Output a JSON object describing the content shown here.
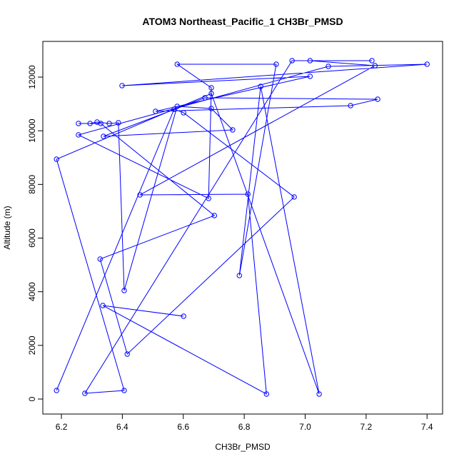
{
  "chart_data": {
    "type": "line",
    "title": "ATOM3 Northeast_Pacific_1 CH3Br_PMSD",
    "x_label": "CH3Br_PMSD",
    "y_label": "Altitude (m)",
    "series": [
      {
        "color": "#0000ff",
        "x": [
          6.184,
          6.57,
          6.601,
          6.964,
          6.416,
          6.327,
          6.702,
          6.329,
          6.256,
          6.294,
          6.317,
          6.357,
          6.387,
          6.406,
          6.58,
          6.692,
          6.762,
          6.338,
          6.671,
          7.238,
          7.149,
          6.509,
          7.016,
          6.399,
          7.4,
          7.076,
          6.256,
          6.683,
          6.692,
          6.58,
          6.905,
          6.784,
          6.854,
          7.046,
          6.692,
          6.184,
          6.406,
          6.277,
          6.957,
          7.219,
          7.016,
          7.229,
          6.458,
          6.812,
          6.873,
          6.336,
          6.601
        ],
        "values": [
          319,
          10804,
          10671,
          7531,
          1676,
          5216,
          6839,
          10272,
          10272,
          10272,
          10325,
          10272,
          10298,
          4045,
          10910,
          10830,
          10032,
          9792,
          11229,
          11176,
          10937,
          10724,
          12028,
          11682,
          12480,
          12400,
          9846,
          7477,
          11602,
          12480,
          12480,
          4604,
          11655,
          186,
          11389,
          8941,
          319,
          213,
          12613,
          12613,
          12613,
          12427,
          7611,
          7637,
          186,
          3486,
          3087
        ]
      }
    ],
    "xlim": [
      6.139,
      7.451
    ],
    "ylim": [
      -559,
      13331
    ],
    "xticks": [
      6.2,
      6.4,
      6.6,
      6.8,
      {
        "value": 7,
        "label": "7.0"
      },
      7.2,
      7.4
    ],
    "yticks": [
      0,
      2000,
      4000,
      6000,
      8000,
      10000,
      12000
    ]
  }
}
